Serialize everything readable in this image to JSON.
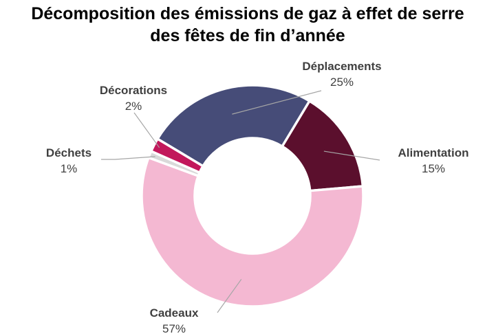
{
  "chart_data": {
    "type": "pie",
    "donut": true,
    "title_lines": [
      "Décomposition des émissions de gaz à effet de serre",
      "des fêtes de fin d’année"
    ],
    "slices": [
      {
        "label": "Déplacements",
        "value_label": "25%",
        "value": 25,
        "color": "#464c78"
      },
      {
        "label": "Alimentation",
        "value_label": "15%",
        "value": 15,
        "color": "#5b0f2d"
      },
      {
        "label": "Cadeaux",
        "value_label": "57%",
        "value": 57,
        "color": "#f4b8d2"
      },
      {
        "label": "Déchets",
        "value_label": "1%",
        "value": 1,
        "color": "#d9d9d9"
      },
      {
        "label": "Décorations",
        "value_label": "2%",
        "value": 2,
        "color": "#c2185b"
      }
    ],
    "legend": "none"
  }
}
